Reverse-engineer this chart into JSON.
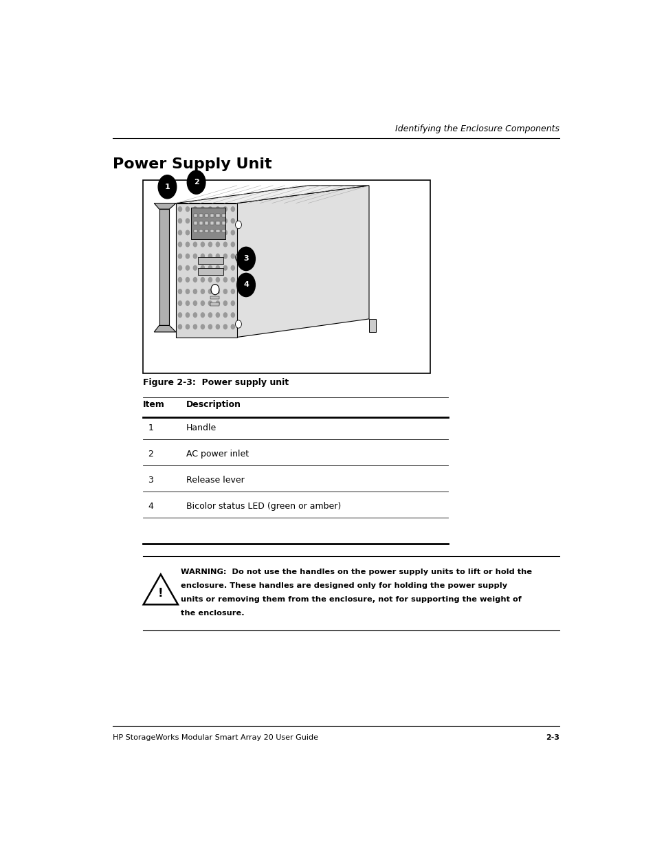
{
  "page_header_right": "Identifying the Enclosure Components",
  "page_title": "Power Supply Unit",
  "figure_caption": "Figure 2-3:  Power supply unit",
  "table_header_col1": "Item",
  "table_header_col2": "Description",
  "table_rows": [
    [
      "1",
      "Handle"
    ],
    [
      "2",
      "AC power inlet"
    ],
    [
      "3",
      "Release lever"
    ],
    [
      "4",
      "Bicolor status LED (green or amber)"
    ]
  ],
  "warn_line1": "WARNING:  Do not use the handles on the power supply units to lift or hold the",
  "warn_line2": "enclosure. These handles are designed only for holding the power supply",
  "warn_line3": "units or removing them from the enclosure, not for supporting the weight of",
  "warn_line4": "the enclosure.",
  "footer_left": "HP StorageWorks Modular Smart Array 20 User Guide",
  "footer_right": "2-3",
  "bg_color": "#ffffff",
  "text_color": "#000000"
}
